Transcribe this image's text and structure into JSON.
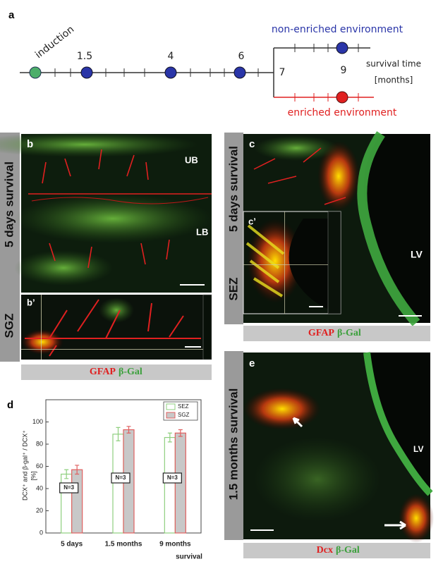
{
  "panel_a": {
    "label": "a",
    "start_label": "induction",
    "timepoints": [
      "1.5",
      "4",
      "6"
    ],
    "branch_timepoint": "7",
    "final_timepoint": "9",
    "upper_branch": "non-enriched environment",
    "lower_branch": "enriched environment",
    "axis_label": [
      "survival time",
      "[months]"
    ]
  },
  "panel_b": {
    "label": "b",
    "inset_label": "b’",
    "side_labels": [
      "5 days survival",
      "SGZ"
    ],
    "region_labels": [
      "UB",
      "LB"
    ],
    "stain": [
      "GFAP",
      "β-Gal"
    ]
  },
  "panel_c": {
    "label": "c",
    "inset_label": "c’",
    "side_labels": [
      "5 days survival",
      "SEZ"
    ],
    "region_labels": [
      "LV"
    ],
    "stain": [
      "GFAP",
      "β-Gal"
    ]
  },
  "panel_e": {
    "label": "e",
    "side_label": "1.5 months survival",
    "region_labels": [
      "LV"
    ],
    "stain": [
      "Dcx",
      "β-Gal"
    ]
  },
  "chart_data": {
    "type": "bar",
    "panel_label": "d",
    "y_label": "DCX⁺ and β-gal⁺ / DCX⁺",
    "y_unit": "[%]",
    "x_label": "survival",
    "categories": [
      "5 days",
      "1.5 months",
      "9 months"
    ],
    "series": [
      {
        "name": "SEZ",
        "color": "#8fcf7f",
        "fill": "#ffffff",
        "values": [
          53,
          89,
          86
        ],
        "errors": [
          4,
          6,
          4
        ]
      },
      {
        "name": "SGZ",
        "color": "#e06060",
        "fill": "#c8c8c8",
        "values": [
          57,
          93,
          90
        ],
        "errors": [
          4,
          3,
          3
        ]
      }
    ],
    "ylim": [
      0,
      120
    ],
    "yticks": [
      0,
      20,
      40,
      60,
      80,
      100
    ],
    "annotations": [
      "N=3",
      "N=3",
      "N=3"
    ]
  }
}
